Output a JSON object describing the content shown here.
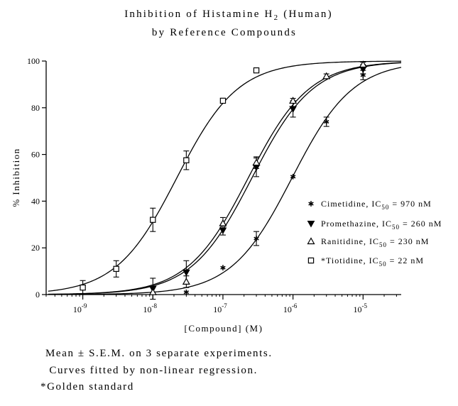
{
  "chart_data": {
    "type": "scatter",
    "title_line1_main": "Inhibition of Histamine H",
    "title_line1_sub": "2",
    "title_line1_tail": " (Human)",
    "title_line2": "by Reference Compounds",
    "xlabel": "[Compound] (M)",
    "ylabel": "% Inhibition",
    "x_scale": "log",
    "xlim": [
      3e-10,
      3.5e-05
    ],
    "ylim": [
      0,
      100
    ],
    "y_ticks": [
      0,
      20,
      40,
      60,
      80,
      100
    ],
    "y_tick_labels": [
      "0",
      "20",
      "40",
      "60",
      "80",
      "100"
    ],
    "x_ticks": [
      1e-09,
      1e-08,
      1e-07,
      1e-06,
      1e-05
    ],
    "x_tick_base": [
      "10",
      "10",
      "10",
      "10",
      "10"
    ],
    "x_tick_exp": [
      "-9",
      "-8",
      "-7",
      "-6",
      "-5"
    ],
    "grid": false,
    "legend_position": "right",
    "series": [
      {
        "name": "Cimetidine",
        "legend_main": "Cimetidine, IC",
        "legend_sub": "50",
        "legend_tail": " = 970 nM",
        "marker": "asterisk",
        "ic50": 9.7e-07,
        "x": [
          3e-08,
          1e-07,
          3e-07,
          1e-06,
          3e-06,
          1e-05
        ],
        "y": [
          1,
          11.5,
          24,
          50.5,
          74,
          94
        ],
        "err": [
          0,
          0,
          3,
          0,
          2,
          2
        ]
      },
      {
        "name": "Promethazine",
        "legend_main": "Promethazine, IC",
        "legend_sub": "50",
        "legend_tail": " = 260 nM",
        "marker": "triangle-down",
        "ic50": 2.6e-07,
        "x": [
          1e-08,
          3e-08,
          1e-07,
          3e-07,
          1e-06,
          1e-05
        ],
        "y": [
          2.5,
          9.5,
          27.5,
          54.5,
          79.5,
          96.5
        ],
        "err": [
          4.5,
          5,
          2,
          4,
          3.5,
          2
        ]
      },
      {
        "name": "Ranitidine",
        "legend_main": "Ranitidine, IC",
        "legend_sub": "50",
        "legend_tail": " = 230 nM",
        "marker": "triangle-up",
        "ic50": 2.3e-07,
        "x": [
          1e-08,
          3e-08,
          1e-07,
          3e-07,
          1e-06,
          3e-06,
          1e-05
        ],
        "y": [
          1,
          5.5,
          30.5,
          56.5,
          83,
          93.5,
          98.5
        ],
        "err": [
          0,
          2.5,
          2.5,
          2.5,
          1,
          1,
          1
        ]
      },
      {
        "name": "Tiotidine",
        "legend_main": "*Tiotidine, IC",
        "legend_sub": "50",
        "legend_tail": " = 22 nM",
        "marker": "square",
        "ic50": 2.2e-08,
        "x": [
          1e-09,
          3e-09,
          1e-08,
          3e-08,
          1e-07,
          3e-07
        ],
        "y": [
          3,
          11,
          32,
          57.5,
          83,
          96
        ],
        "err": [
          3,
          3.5,
          5,
          4,
          1,
          0
        ]
      }
    ]
  },
  "footnotes": [
    "Mean ± S.E.M. on 3 separate experiments.",
    " Curves fitted by non-linear regression.",
    "*Golden standard"
  ]
}
